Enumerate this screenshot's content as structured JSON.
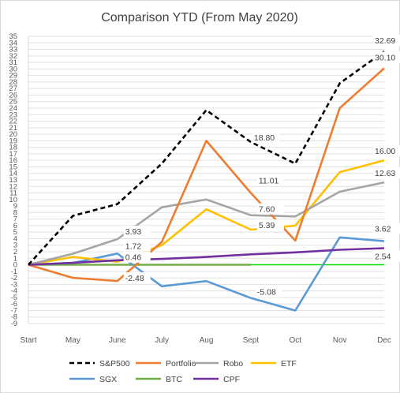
{
  "chart_data": {
    "type": "line",
    "title": "Comparison YTD (From May 2020)",
    "xlabel": "",
    "ylabel": "",
    "categories": [
      "Start",
      "May",
      "June",
      "July",
      "Aug",
      "Sept",
      "Oct",
      "Nov",
      "Dec"
    ],
    "ylim": [
      -9,
      35
    ],
    "yticks": [
      35,
      34,
      33,
      32,
      31,
      30,
      29,
      28,
      27,
      26,
      25,
      24,
      23,
      22,
      21,
      20,
      19,
      18,
      17,
      16,
      15,
      14,
      13,
      12,
      11,
      10,
      9,
      8,
      7,
      6,
      5,
      4,
      3,
      2,
      1,
      0,
      -1,
      -2,
      -3,
      -4,
      -5,
      -6,
      -7,
      -8,
      -9
    ],
    "grid": true,
    "legend_position": "bottom",
    "series": [
      {
        "name": "S&P500",
        "color": "#000000",
        "dash": "dashed",
        "values": [
          0,
          7.5,
          9.3,
          15.5,
          23.7,
          18.8,
          15.5,
          27.8,
          32.69
        ]
      },
      {
        "name": "Portfolio",
        "color": "#ED7D31",
        "dash": "solid",
        "values": [
          0,
          -2.0,
          -2.48,
          3.5,
          19.0,
          11.01,
          3.7,
          24.0,
          30.1
        ]
      },
      {
        "name": "Robo",
        "color": "#A5A5A5",
        "dash": "solid",
        "values": [
          0,
          1.7,
          3.93,
          8.8,
          10.0,
          7.6,
          7.4,
          11.2,
          12.63
        ]
      },
      {
        "name": "ETF",
        "color": "#FFC000",
        "dash": "solid",
        "values": [
          0,
          1.2,
          0.46,
          3.0,
          8.5,
          5.39,
          6.0,
          14.2,
          16.0
        ]
      },
      {
        "name": "SGX",
        "color": "#5B9BD5",
        "dash": "solid",
        "values": [
          0,
          0.3,
          1.72,
          -3.3,
          -2.5,
          -5.08,
          -7.0,
          4.2,
          3.62
        ]
      },
      {
        "name": "BTC",
        "color": "#70AD47",
        "dash": "solid",
        "values": [
          0,
          0,
          0,
          0,
          0,
          0,
          null,
          null,
          null
        ]
      },
      {
        "name": "CPF",
        "color": "#7030A0",
        "dash": "solid",
        "values": [
          0,
          0.3,
          0.7,
          0.9,
          1.2,
          1.6,
          1.9,
          2.3,
          2.54
        ]
      }
    ],
    "extra_lines": [
      {
        "name": "",
        "color": "#00E000",
        "x0": 5,
        "x1": 8,
        "y": 0
      }
    ],
    "data_labels": [
      {
        "series": "S&P500",
        "index": 5,
        "text": "18.80"
      },
      {
        "series": "S&P500",
        "index": 8,
        "text": "32.69"
      },
      {
        "series": "Portfolio",
        "index": 5,
        "text": "11.01"
      },
      {
        "series": "Portfolio",
        "index": 8,
        "text": "30.10"
      },
      {
        "series": "Portfolio",
        "index": 2,
        "text": "-2.48"
      },
      {
        "series": "Robo",
        "index": 5,
        "text": "7.60"
      },
      {
        "series": "Robo",
        "index": 8,
        "text": "12.63"
      },
      {
        "series": "Robo",
        "index": 2,
        "text": "3.93"
      },
      {
        "series": "ETF",
        "index": 5,
        "text": "5.39"
      },
      {
        "series": "ETF",
        "index": 8,
        "text": "16.00"
      },
      {
        "series": "ETF",
        "index": 2,
        "text": "0.46"
      },
      {
        "series": "SGX",
        "index": 5,
        "text": "-5.08"
      },
      {
        "series": "SGX",
        "index": 8,
        "text": "3.62"
      },
      {
        "series": "SGX",
        "index": 2,
        "text": "1.72"
      },
      {
        "series": "CPF",
        "index": 8,
        "text": "2.54"
      }
    ]
  }
}
